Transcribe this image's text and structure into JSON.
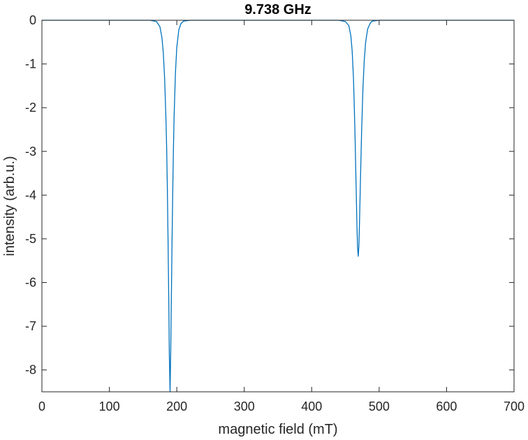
{
  "chart_data": {
    "type": "line",
    "title": "9.738 GHz",
    "xlabel": "magnetic field (mT)",
    "ylabel": "intensity (arb.u.)",
    "xlim": [
      0,
      700
    ],
    "ylim": [
      -8.5,
      0
    ],
    "xticks": [
      0,
      100,
      200,
      300,
      400,
      500,
      600,
      700
    ],
    "xtick_labels": [
      "0",
      "100",
      "200",
      "300",
      "400",
      "500",
      "600",
      "700"
    ],
    "yticks": [
      0,
      -1,
      -2,
      -3,
      -4,
      -5,
      -6,
      -7,
      -8
    ],
    "ytick_labels": [
      "0",
      "-1",
      "-2",
      "-3",
      "-4",
      "-5",
      "-6",
      "-7",
      "-8"
    ],
    "grid": false,
    "box": true,
    "line_color": "#0072BD",
    "axis_color": "#262626",
    "series": [
      {
        "x": [
          0,
          160,
          170,
          175,
          178,
          180,
          182,
          184,
          185,
          186,
          187,
          188,
          189,
          190,
          191,
          192,
          193,
          194,
          195,
          196,
          198,
          200,
          203,
          206,
          210,
          220,
          440,
          450,
          455,
          458,
          460,
          462,
          464,
          466,
          467,
          468,
          469,
          470,
          471,
          472,
          474,
          476,
          478,
          480,
          483,
          487,
          490,
          500,
          700
        ],
        "y": [
          0,
          0,
          -0.03,
          -0.15,
          -0.4,
          -0.75,
          -1.35,
          -2.3,
          -2.95,
          -3.85,
          -5.0,
          -6.3,
          -7.7,
          -8.5,
          -7.6,
          -6.3,
          -5.0,
          -3.9,
          -2.95,
          -2.2,
          -1.2,
          -0.62,
          -0.22,
          -0.08,
          -0.02,
          0,
          0,
          -0.03,
          -0.12,
          -0.35,
          -0.7,
          -1.35,
          -2.45,
          -3.9,
          -4.65,
          -5.2,
          -5.4,
          -5.15,
          -4.55,
          -3.85,
          -2.55,
          -1.55,
          -0.9,
          -0.5,
          -0.2,
          -0.06,
          -0.02,
          0,
          0
        ]
      }
    ]
  }
}
